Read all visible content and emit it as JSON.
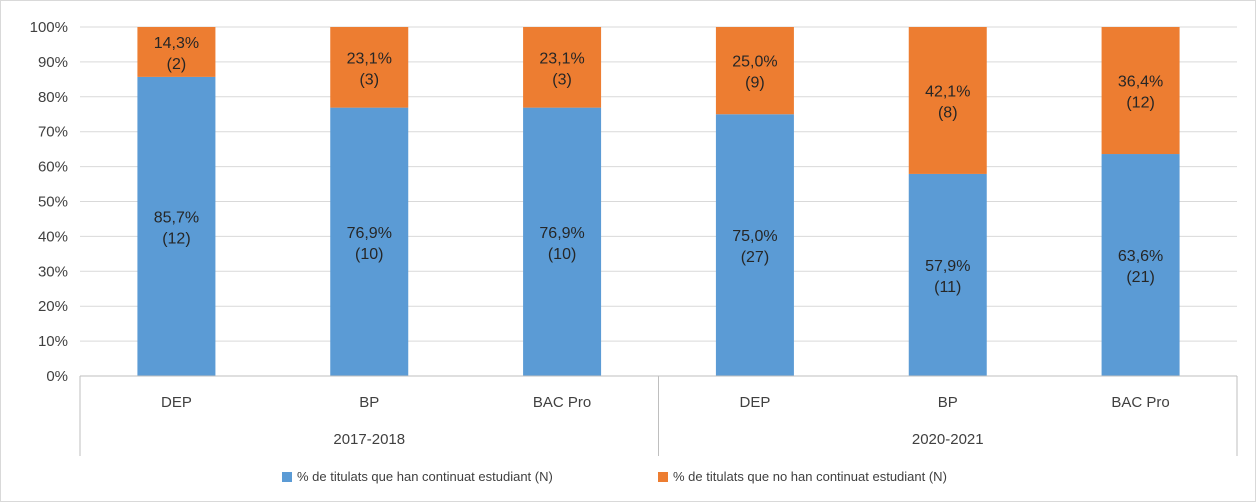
{
  "chart_data": {
    "type": "bar",
    "stacked": true,
    "ylim": [
      0,
      100
    ],
    "y_ticks": [
      "0%",
      "10%",
      "20%",
      "30%",
      "40%",
      "50%",
      "60%",
      "70%",
      "80%",
      "90%",
      "100%"
    ],
    "categories": [
      "DEP",
      "BP",
      "BAC Pro",
      "DEP",
      "BP",
      "BAC Pro"
    ],
    "groups": [
      {
        "label": "2017-2018",
        "categories": [
          "DEP",
          "BP",
          "BAC Pro"
        ]
      },
      {
        "label": "2020-2021",
        "categories": [
          "DEP",
          "BP",
          "BAC Pro"
        ]
      }
    ],
    "series": [
      {
        "name": "% de titulats que han continuat estudiant (N)",
        "color": "#5b9bd5",
        "values": [
          85.7,
          76.9,
          76.9,
          75.0,
          57.9,
          63.6
        ],
        "labels": [
          "85,7%",
          "76,9%",
          "76,9%",
          "75,0%",
          "57,9%",
          "63,6%"
        ],
        "counts": [
          "(12)",
          "(10)",
          "(10)",
          "(27)",
          "(11)",
          "(21)"
        ]
      },
      {
        "name": "% de titulats que no han continuat estudiant (N)",
        "color": "#ed7d31",
        "values": [
          14.3,
          23.1,
          23.1,
          25.0,
          42.1,
          36.4
        ],
        "labels": [
          "14,3%",
          "23,1%",
          "23,1%",
          "25,0%",
          "42,1%",
          "36,4%"
        ],
        "counts": [
          "(2)",
          "(3)",
          "(3)",
          "(9)",
          "(8)",
          "(12)"
        ]
      }
    ],
    "grid": true,
    "legend_position": "bottom"
  }
}
